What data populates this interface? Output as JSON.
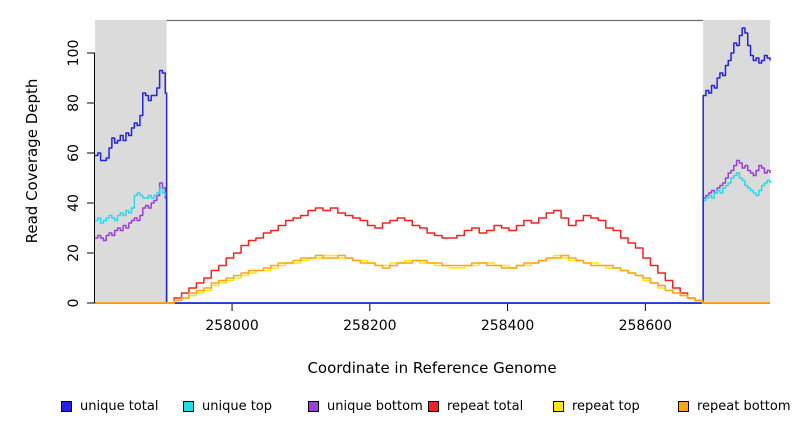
{
  "chart_data": {
    "type": "line",
    "interpolation": "step-after",
    "xlabel": "Coordinate in Reference Genome",
    "ylabel": "Read Coverage Depth",
    "xlim": [
      257801,
      258781
    ],
    "ylim": [
      0,
      113.2
    ],
    "x_ticks": [
      258000,
      258200,
      258400,
      258600
    ],
    "x_tick_labels": [
      "258000",
      "258200",
      "258400",
      "258600"
    ],
    "y_ticks": [
      0,
      20,
      40,
      60,
      80,
      100
    ],
    "y_tick_labels": [
      "0",
      "20",
      "40",
      "60",
      "80",
      "100"
    ],
    "grid": false,
    "legend_position": "bottom",
    "shade_color": "#DBDBDB",
    "shaded_regions": [
      {
        "from": 257801,
        "to": 257905
      },
      {
        "from": 258684,
        "to": 258781
      }
    ],
    "draw_order": [
      2,
      1,
      0,
      3,
      4,
      5
    ],
    "series": [
      {
        "name": "unique total",
        "color": "#2424E0",
        "segments": [
          {
            "x0": 257801,
            "x1": 257903,
            "values": [
              59,
              60,
              57,
              57,
              58,
              62,
              66,
              64,
              65,
              67,
              65,
              68,
              67,
              70,
              72,
              71,
              75,
              84,
              83,
              81,
              83,
              83,
              86,
              93,
              92,
              84
            ]
          },
          {
            "x0": 257905,
            "x1": 258683,
            "values": [
              0,
              0
            ]
          },
          {
            "x0": 258684,
            "x1": 258781,
            "values": [
              83,
              85,
              84,
              87,
              86,
              90,
              92,
              91,
              95,
              97,
              100,
              104,
              103,
              107,
              110,
              108,
              103,
              99,
              97,
              98,
              96,
              97,
              99,
              98,
              97
            ]
          }
        ]
      },
      {
        "name": "unique top",
        "color": "#25DCEE",
        "segments": [
          {
            "x0": 257801,
            "x1": 257903,
            "values": [
              33,
              34,
              32,
              33,
              34,
              35,
              34,
              33,
              35,
              36,
              35,
              37,
              36,
              38,
              43,
              44,
              43,
              42,
              42,
              43,
              42,
              43,
              44,
              46,
              44,
              43
            ]
          },
          {
            "x0": 257905,
            "x1": 258683,
            "values": [
              0,
              0
            ]
          },
          {
            "x0": 258684,
            "x1": 258781,
            "values": [
              41,
              42,
              43,
              42,
              44,
              45,
              44,
              46,
              47,
              48,
              50,
              51,
              52,
              50,
              49,
              47,
              46,
              45,
              44,
              43,
              45,
              47,
              48,
              49,
              48
            ]
          }
        ]
      },
      {
        "name": "unique bottom",
        "color": "#9B3FD6",
        "segments": [
          {
            "x0": 257801,
            "x1": 257903,
            "values": [
              26,
              27,
              26,
              25,
              27,
              28,
              27,
              29,
              30,
              29,
              31,
              30,
              32,
              33,
              34,
              33,
              35,
              38,
              39,
              38,
              40,
              41,
              43,
              48,
              46,
              42
            ]
          },
          {
            "x0": 257905,
            "x1": 258683,
            "values": [
              0,
              0
            ]
          },
          {
            "x0": 258684,
            "x1": 258781,
            "values": [
              42,
              43,
              44,
              45,
              44,
              46,
              47,
              48,
              50,
              52,
              53,
              55,
              57,
              56,
              54,
              55,
              53,
              52,
              51,
              53,
              55,
              54,
              52,
              53,
              52
            ]
          }
        ]
      },
      {
        "name": "repeat total",
        "color": "#F32222",
        "segments": [
          {
            "x0": 257801,
            "x1": 257904,
            "values": [
              0,
              0
            ]
          },
          {
            "x0": 257905,
            "x1": 258683,
            "values": [
              0,
              2,
              4,
              6,
              8,
              10,
              13,
              15,
              18,
              20,
              23,
              25,
              26,
              28,
              29,
              31,
              33,
              34,
              35,
              37,
              38,
              37,
              38,
              36,
              35,
              34,
              33,
              31,
              30,
              32,
              33,
              34,
              33,
              31,
              30,
              28,
              27,
              26,
              26,
              27,
              29,
              30,
              28,
              29,
              31,
              30,
              29,
              31,
              33,
              32,
              34,
              36,
              37,
              34,
              31,
              33,
              35,
              34,
              33,
              30,
              29,
              26,
              24,
              22,
              18,
              15,
              12,
              9,
              6,
              4,
              2,
              1,
              0
            ]
          },
          {
            "x0": 258684,
            "x1": 258781,
            "values": [
              0,
              0
            ]
          }
        ]
      },
      {
        "name": "repeat top",
        "color": "#FFE619",
        "segments": [
          {
            "x0": 257801,
            "x1": 257904,
            "values": [
              0,
              0
            ]
          },
          {
            "x0": 257905,
            "x1": 258683,
            "values": [
              0,
              1,
              2,
              3,
              4,
              5,
              7,
              8,
              9,
              10,
              11,
              12,
              13,
              13,
              14,
              15,
              16,
              16,
              17,
              18,
              18,
              19,
              19,
              18,
              18,
              17,
              17,
              16,
              15,
              15,
              16,
              16,
              17,
              17,
              16,
              16,
              15,
              15,
              14,
              14,
              15,
              15,
              16,
              16,
              15,
              15,
              14,
              15,
              15,
              16,
              17,
              18,
              19,
              18,
              17,
              17,
              16,
              16,
              15,
              14,
              14,
              13,
              12,
              11,
              9,
              8,
              6,
              5,
              4,
              3,
              2,
              1,
              0
            ]
          },
          {
            "x0": 258684,
            "x1": 258781,
            "values": [
              0,
              0
            ]
          }
        ]
      },
      {
        "name": "repeat bottom",
        "color": "#FFA319",
        "segments": [
          {
            "x0": 257801,
            "x1": 257904,
            "values": [
              0,
              0
            ]
          },
          {
            "x0": 257905,
            "x1": 258683,
            "values": [
              0,
              1,
              2,
              4,
              5,
              6,
              8,
              9,
              10,
              11,
              12,
              13,
              13,
              14,
              15,
              16,
              16,
              17,
              18,
              18,
              19,
              18,
              18,
              19,
              18,
              17,
              16,
              16,
              15,
              14,
              15,
              16,
              16,
              17,
              17,
              16,
              16,
              15,
              15,
              15,
              15,
              16,
              16,
              15,
              15,
              14,
              14,
              15,
              16,
              16,
              17,
              18,
              18,
              19,
              18,
              17,
              16,
              15,
              15,
              15,
              14,
              13,
              12,
              11,
              10,
              8,
              7,
              5,
              4,
              3,
              2,
              1,
              0
            ]
          },
          {
            "x0": 258684,
            "x1": 258781,
            "values": [
              0,
              0
            ]
          }
        ]
      }
    ]
  }
}
